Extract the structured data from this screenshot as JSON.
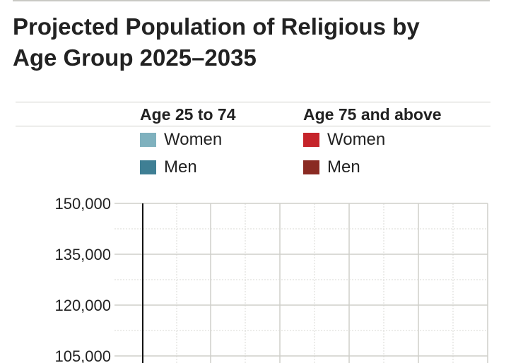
{
  "title": "Projected Population of Religious by Age Group 2025–2035",
  "legend": {
    "groups": [
      {
        "heading": "Age 25 to 74",
        "items": [
          {
            "label": "Women",
            "color": "#7fb1be"
          },
          {
            "label": "Men",
            "color": "#3f7f94"
          }
        ]
      },
      {
        "heading": "Age 75 and above",
        "items": [
          {
            "label": "Women",
            "color": "#c5242a"
          },
          {
            "label": "Men",
            "color": "#8a2a22"
          }
        ]
      }
    ]
  },
  "chart_data": {
    "type": "bar",
    "title": "Projected Population of Religious by Age Group 2025–2035",
    "xlabel": "",
    "ylabel": "",
    "ylim": [
      105000,
      150000
    ],
    "visible_y_ticks": [
      {
        "value": 150000,
        "label": "150,000"
      },
      {
        "value": 135000,
        "label": "135,000"
      },
      {
        "value": 120000,
        "label": "120,000"
      },
      {
        "value": 105000,
        "label": "105,000"
      }
    ],
    "grid": true,
    "series": [],
    "colors": {
      "gridline": "#cfcfca",
      "minor_gridline": "#d9d9d5",
      "axis": "#111111"
    }
  }
}
